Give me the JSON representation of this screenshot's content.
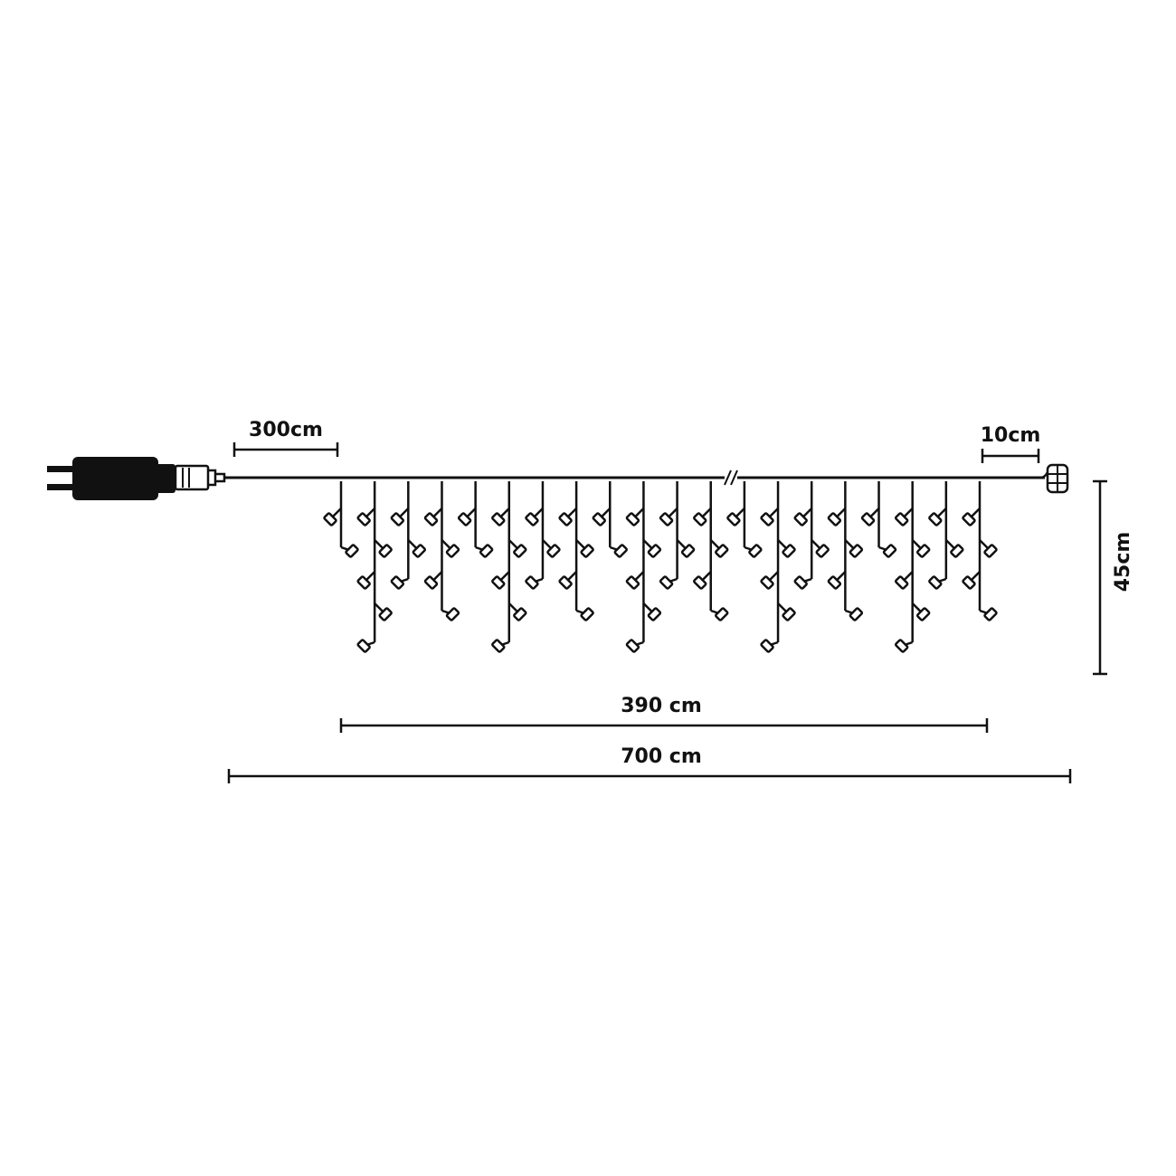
{
  "colors": {
    "line": "#111111",
    "background": "#ffffff",
    "bulb_fill": "#ffffff"
  },
  "labels": {
    "lead_cable": "300cm",
    "end_cable": "10cm",
    "drop_height": "45cm",
    "lit_section": "390 cm",
    "total_length": "700 cm"
  },
  "icons": {
    "plug": "plug-icon",
    "adapter": "adapter-icon",
    "end_connector": "end-connector-icon",
    "bulb": "led-bulb-icon",
    "break_mark": "cable-break-icon"
  },
  "icicle_pattern": {
    "drop_count": 20,
    "bulbs_per_drop": [
      2,
      5,
      3,
      4,
      2,
      5,
      3,
      4,
      2,
      5,
      3,
      4,
      2,
      5,
      3,
      4,
      2,
      5,
      3,
      4
    ]
  }
}
